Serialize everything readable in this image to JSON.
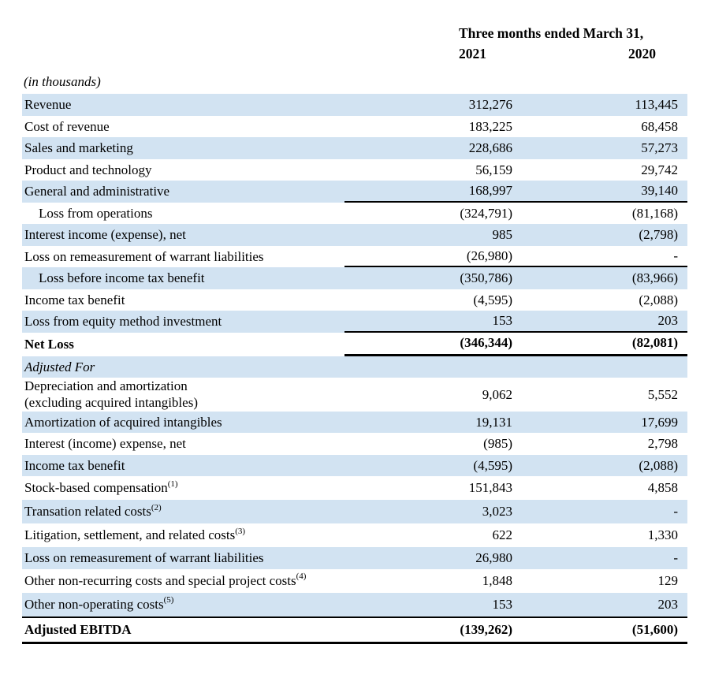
{
  "header": {
    "period_label": "Three months ended March 31,",
    "col_2021": "2021",
    "col_2020": "2020",
    "units_note": "(in thousands)"
  },
  "table": {
    "columns": [
      "2021",
      "2020"
    ],
    "rows": [
      {
        "label": "Revenue",
        "v2021": "312,276",
        "v2020": "113,445",
        "shade": true
      },
      {
        "label": "Cost of revenue",
        "v2021": "183,225",
        "v2020": "68,458",
        "shade": false
      },
      {
        "label": "Sales and marketing",
        "v2021": "228,686",
        "v2020": "57,273",
        "shade": true
      },
      {
        "label": "Product and technology",
        "v2021": "56,159",
        "v2020": "29,742",
        "shade": false
      },
      {
        "label": "General and administrative",
        "v2021": "168,997",
        "v2020": "39,140",
        "shade": true,
        "border": "vals"
      },
      {
        "label": "Loss from operations",
        "v2021": "(324,791)",
        "v2020": "(81,168)",
        "shade": false,
        "indent": true
      },
      {
        "label": "Interest income (expense), net",
        "v2021": "985",
        "v2020": "(2,798)",
        "shade": true
      },
      {
        "label": "Loss on remeasurement of warrant liabilities",
        "v2021": "(26,980)",
        "v2020": "-",
        "shade": false,
        "border": "vals"
      },
      {
        "label": "Loss before income tax benefit",
        "v2021": "(350,786)",
        "v2020": "(83,966)",
        "shade": true,
        "indent": true
      },
      {
        "label": "Income tax benefit",
        "v2021": "(4,595)",
        "v2020": "(2,088)",
        "shade": false
      },
      {
        "label": "Loss from equity method investment",
        "v2021": "153",
        "v2020": "203",
        "shade": true,
        "border": "vals"
      },
      {
        "label": "Net Loss",
        "v2021": "(346,344)",
        "v2020": "(82,081)",
        "shade": false,
        "bold": true,
        "border": "vals-thick"
      },
      {
        "label": "Adjusted For",
        "v2021": "",
        "v2020": "",
        "shade": true,
        "italic": true
      },
      {
        "label": "Depreciation and amortization",
        "label2": "(excluding acquired intangibles)",
        "v2021": "9,062",
        "v2020": "5,552",
        "shade": false
      },
      {
        "label": "Amortization of acquired intangibles",
        "v2021": "19,131",
        "v2020": "17,699",
        "shade": true
      },
      {
        "label": "Interest (income) expense, net",
        "v2021": "(985)",
        "v2020": "2,798",
        "shade": false
      },
      {
        "label": "Income tax benefit",
        "v2021": "(4,595)",
        "v2020": "(2,088)",
        "shade": true
      },
      {
        "label": "Stock-based compensation",
        "sup": "(1)",
        "v2021": "151,843",
        "v2020": "4,858",
        "shade": false
      },
      {
        "label": "Transation related costs",
        "sup": "(2)",
        "v2021": "3,023",
        "v2020": "-",
        "shade": true
      },
      {
        "label": "Litigation, settlement, and related costs",
        "sup": "(3)",
        "v2021": "622",
        "v2020": "1,330",
        "shade": false
      },
      {
        "label": "Loss on remeasurement of warrant liabilities",
        "v2021": "26,980",
        "v2020": "-",
        "shade": true
      },
      {
        "label": "Other non-recurring costs and special project costs",
        "sup": "(4)",
        "v2021": "1,848",
        "v2020": "129",
        "shade": false
      },
      {
        "label": "Other non-operating costs",
        "sup": "(5)",
        "v2021": "153",
        "v2020": "203",
        "shade": true,
        "border": "full"
      },
      {
        "label": "Adjusted EBITDA",
        "v2021": "(139,262)",
        "v2020": "(51,600)",
        "shade": false,
        "bold": true,
        "border": "full-thick"
      }
    ]
  },
  "colors": {
    "row_shade": "#d2e3f2",
    "text": "#000000",
    "rule": "#000000"
  }
}
